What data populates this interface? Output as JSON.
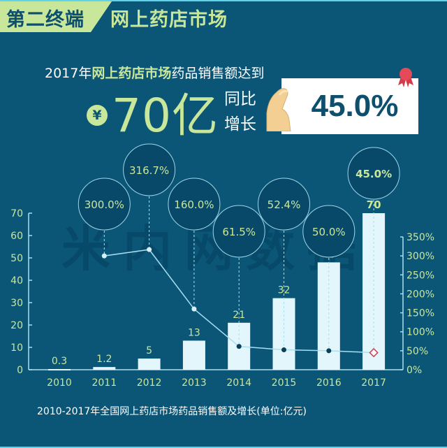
{
  "header": {
    "section_label": "第二终端",
    "title": "网上药店市场"
  },
  "headline": {
    "prefix": "2017年",
    "highlight": "网上药店市场",
    "suffix": "药品销售额达到",
    "currency_symbol": "¥",
    "amount": "70亿",
    "growth_label_line1": "同比",
    "growth_label_line2": "增长",
    "growth_value": "45.0%"
  },
  "watermark": "米内网数据",
  "caption": "2010-2017年全国网上药店市场药品销售额及增长(单位:亿元)",
  "colors": {
    "background": "#0b5677",
    "accent_green": "#c9e79b",
    "bar_fill": "#e3f6fc",
    "line": "#a9dff0",
    "bubble": "#08496a",
    "highlight_marker": "#d33a4a"
  },
  "chart_data": {
    "type": "bar",
    "title": "2010-2017年全国网上药店市场药品销售额及增长(单位:亿元)",
    "categories": [
      "2010",
      "2011",
      "2012",
      "2013",
      "2014",
      "2015",
      "2016",
      "2017"
    ],
    "series": [
      {
        "name": "药品销售额(亿元)",
        "type": "bar",
        "axis": "left",
        "values": [
          0.3,
          1.2,
          5,
          13,
          21,
          32,
          48,
          70
        ],
        "labels": [
          "0.3",
          "1.2",
          "5",
          "13",
          "21",
          "32",
          "48",
          "70"
        ]
      },
      {
        "name": "同比增长(%)",
        "type": "line",
        "axis": "right",
        "values": [
          null,
          300.0,
          316.7,
          160.0,
          61.5,
          52.4,
          50.0,
          45.0
        ],
        "labels": [
          "",
          "300.0%",
          "316.7%",
          "160.0%",
          "61.5%",
          "52.4%",
          "50.0%",
          "45.0%"
        ]
      }
    ],
    "xlabel": "",
    "ylabel": "",
    "ylim": [
      0,
      70
    ],
    "y_ticks": [
      "0",
      "10",
      "20",
      "30",
      "40",
      "50",
      "60",
      "70"
    ],
    "y2lim": [
      0,
      350
    ],
    "y2_ticks": [
      "0%",
      "50%",
      "100%",
      "150%",
      "200%",
      "250%",
      "300%",
      "350%"
    ],
    "grid": false,
    "legend": "none"
  }
}
